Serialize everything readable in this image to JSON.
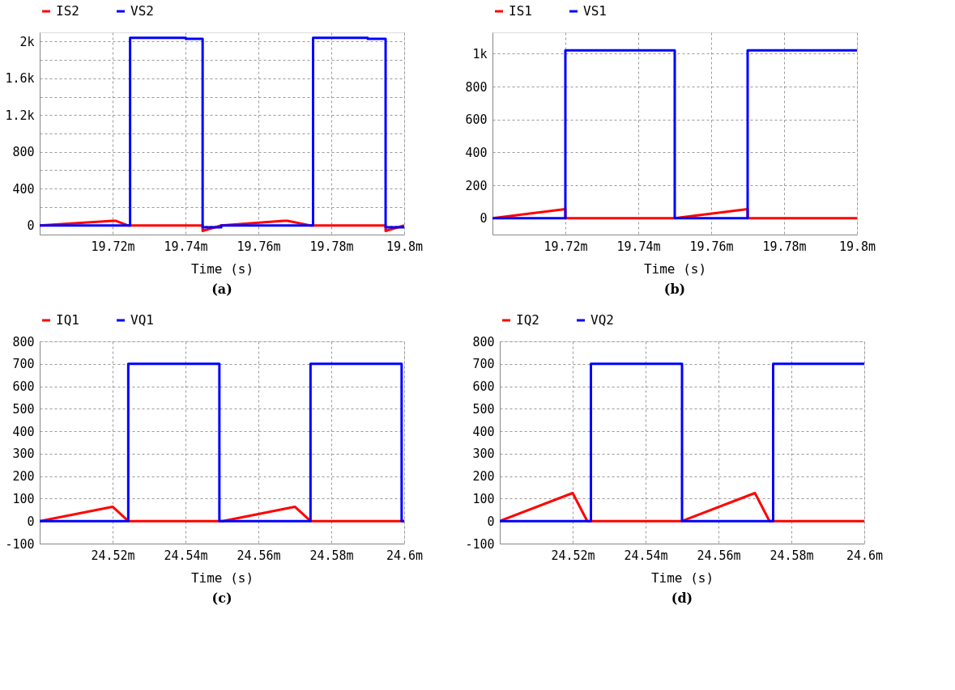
{
  "chart_data": [
    {
      "type": "line",
      "title": "(a)",
      "xlabel": "Time (s)",
      "xlim": [
        19.7,
        19.8
      ],
      "xticks": [
        {
          "value": 19.72,
          "label": "19.72m"
        },
        {
          "value": 19.74,
          "label": "19.74m"
        },
        {
          "value": 19.76,
          "label": "19.76m"
        },
        {
          "value": 19.78,
          "label": "19.78m"
        },
        {
          "value": 19.8,
          "label": "19.8m"
        }
      ],
      "ylim": [
        -100,
        2100
      ],
      "yticks": [
        0,
        {
          "value": 200,
          "label": null
        },
        400,
        {
          "value": 600,
          "label": null
        },
        800,
        {
          "value": 1000,
          "label": null
        },
        {
          "value": 1200,
          "label": "1.2k"
        },
        {
          "value": 1400,
          "label": null
        },
        {
          "value": 1600,
          "label": "1.6k"
        },
        {
          "value": 1800,
          "label": null
        },
        {
          "value": 2000,
          "label": "2k"
        }
      ],
      "grid": true,
      "legend": "top left",
      "line_style": "solid",
      "series": [
        {
          "name": "IS2",
          "color": "#ff0000",
          "x": [
            19.7,
            19.72,
            19.7208,
            19.7242,
            19.7447,
            19.7447,
            19.7498,
            19.7669,
            19.768,
            19.7742,
            19.7949,
            19.7949,
            19.8
          ],
          "values": [
            0,
            50,
            50,
            0,
            0,
            -60,
            0,
            50,
            50,
            0,
            0,
            -60,
            0
          ]
        },
        {
          "name": "VS2",
          "color": "#0000ff",
          "x": [
            19.7,
            19.7248,
            19.7248,
            19.7401,
            19.7401,
            19.7447,
            19.7447,
            19.7498,
            19.7498,
            19.775,
            19.775,
            19.79,
            19.79,
            19.7949,
            19.7949,
            19.8
          ],
          "values": [
            0,
            0,
            2040,
            2040,
            2030,
            2030,
            -20,
            -20,
            0,
            0,
            2040,
            2040,
            2030,
            2030,
            -20,
            -20
          ]
        }
      ]
    },
    {
      "type": "line",
      "title": "(b)",
      "xlabel": "Time (s)",
      "xlim": [
        19.7,
        19.8
      ],
      "xticks": [
        {
          "value": 19.72,
          "label": "19.72m"
        },
        {
          "value": 19.74,
          "label": "19.74m"
        },
        {
          "value": 19.76,
          "label": "19.76m"
        },
        {
          "value": 19.78,
          "label": "19.78m"
        },
        {
          "value": 19.8,
          "label": "19.8m"
        }
      ],
      "ylim": [
        -100,
        1130
      ],
      "yticks": [
        0,
        200,
        400,
        600,
        800,
        {
          "value": 1000,
          "label": "1k"
        }
      ],
      "grid": true,
      "legend": "top left",
      "line_style": "solid",
      "series": [
        {
          "name": "IS1",
          "color": "#ff0000",
          "x": [
            19.7,
            19.72,
            19.72,
            19.75,
            19.77,
            19.77,
            19.8
          ],
          "values": [
            0,
            55,
            0,
            0,
            55,
            0,
            0
          ]
        },
        {
          "name": "VS1",
          "color": "#0000ff",
          "x": [
            19.7,
            19.72,
            19.72,
            19.75,
            19.75,
            19.77,
            19.77,
            19.8
          ],
          "values": [
            0,
            0,
            1020,
            1020,
            0,
            0,
            1020,
            1020
          ]
        }
      ]
    },
    {
      "type": "line",
      "title": "(c)",
      "xlabel": "Time (s)",
      "xlim": [
        24.5,
        24.6
      ],
      "xticks": [
        {
          "value": 24.52,
          "label": "24.52m"
        },
        {
          "value": 24.54,
          "label": "24.54m"
        },
        {
          "value": 24.56,
          "label": "24.56m"
        },
        {
          "value": 24.58,
          "label": "24.58m"
        },
        {
          "value": 24.6,
          "label": "24.6m"
        }
      ],
      "ylim": [
        -100,
        800
      ],
      "yticks": [
        -100,
        0,
        100,
        200,
        300,
        400,
        500,
        600,
        700,
        800
      ],
      "grid": true,
      "legend": "top left",
      "line_style": "solid",
      "series": [
        {
          "name": "IQ1",
          "color": "#ff0000",
          "x": [
            24.5,
            24.52,
            24.5243,
            24.5502,
            24.57,
            24.5743,
            24.6
          ],
          "values": [
            0,
            64,
            0,
            0,
            64,
            0,
            0
          ]
        },
        {
          "name": "VQ1",
          "color": "#0000ff",
          "x": [
            24.5,
            24.5243,
            24.5243,
            24.5493,
            24.5493,
            24.5743,
            24.5743,
            24.5993,
            24.5993,
            24.6
          ],
          "values": [
            0,
            0,
            700,
            700,
            0,
            0,
            700,
            700,
            0,
            0
          ]
        }
      ]
    },
    {
      "type": "line",
      "title": "(d)",
      "xlabel": "Time (s)",
      "xlim": [
        24.5,
        24.6
      ],
      "xticks": [
        {
          "value": 24.52,
          "label": "24.52m"
        },
        {
          "value": 24.54,
          "label": "24.54m"
        },
        {
          "value": 24.56,
          "label": "24.56m"
        },
        {
          "value": 24.58,
          "label": "24.58m"
        },
        {
          "value": 24.6,
          "label": "24.6m"
        }
      ],
      "ylim": [
        -100,
        800
      ],
      "yticks": [
        -100,
        0,
        100,
        200,
        300,
        400,
        500,
        600,
        700,
        800
      ],
      "grid": true,
      "legend": "top left",
      "line_style": "solid",
      "series": [
        {
          "name": "IQ2",
          "color": "#ff0000",
          "x": [
            24.5,
            24.52,
            24.524,
            24.55,
            24.57,
            24.574,
            24.6
          ],
          "values": [
            0,
            125,
            0,
            0,
            125,
            0,
            0
          ]
        },
        {
          "name": "VQ2",
          "color": "#0000ff",
          "x": [
            24.5,
            24.525,
            24.525,
            24.55,
            24.55,
            24.575,
            24.575,
            24.6
          ],
          "values": [
            0,
            0,
            700,
            700,
            0,
            0,
            700,
            700
          ]
        }
      ]
    }
  ]
}
